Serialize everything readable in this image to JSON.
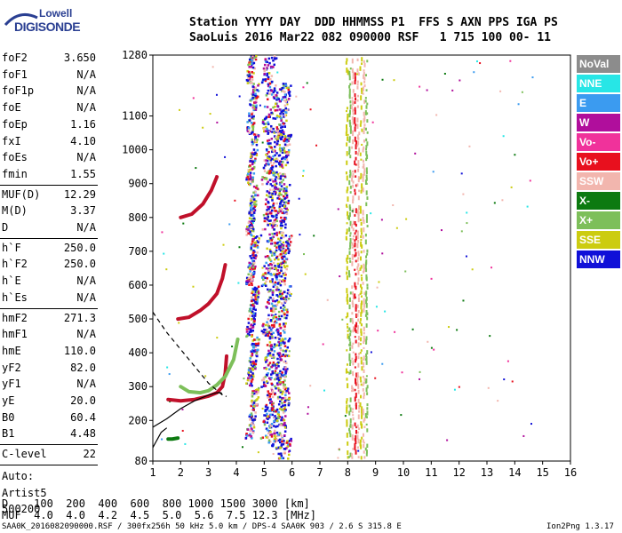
{
  "logo": {
    "top": "Lowell",
    "bottom": "DIGISONDE"
  },
  "header": {
    "line1": "Station YYYY DAY  DDD HHMMSS P1  FFS S AXN PPS IGA PS",
    "line2": "SaoLuis 2016 Mar22 082 090000 RSF   1 715 100 00- 11"
  },
  "params_group1": [
    {
      "label": "foF2",
      "value": "3.650"
    },
    {
      "label": "foF1",
      "value": "N/A"
    },
    {
      "label": "foF1p",
      "value": "N/A"
    },
    {
      "label": "foE",
      "value": "N/A"
    },
    {
      "label": "foEp",
      "value": "1.16"
    },
    {
      "label": "fxI",
      "value": "4.10"
    },
    {
      "label": "foEs",
      "value": "N/A"
    },
    {
      "label": "fmin",
      "value": "1.55"
    }
  ],
  "params_group2": [
    {
      "label": "MUF(D)",
      "value": "12.29"
    },
    {
      "label": "M(D)",
      "value": "3.37"
    },
    {
      "label": "D",
      "value": "N/A"
    }
  ],
  "params_group3": [
    {
      "label": "h`F",
      "value": "250.0"
    },
    {
      "label": "h`F2",
      "value": "250.0"
    },
    {
      "label": "h`E",
      "value": "N/A"
    },
    {
      "label": "h`Es",
      "value": "N/A"
    }
  ],
  "params_group4": [
    {
      "label": "hmF2",
      "value": "271.3"
    },
    {
      "label": "hmF1",
      "value": "N/A"
    },
    {
      "label": "hmE",
      "value": "110.0"
    },
    {
      "label": "yF2",
      "value": "82.0"
    },
    {
      "label": "yF1",
      "value": "N/A"
    },
    {
      "label": "yE",
      "value": "20.0"
    },
    {
      "label": "B0",
      "value": "60.4"
    },
    {
      "label": "B1",
      "value": "4.48"
    }
  ],
  "clevel": {
    "label": "C-level",
    "value": "22"
  },
  "auto": [
    "Auto:",
    "Artist5",
    "500200"
  ],
  "legend": [
    {
      "label": "NoVal",
      "color": "#8c8c8c"
    },
    {
      "label": "NNE",
      "color": "#27e6e6"
    },
    {
      "label": "E",
      "color": "#3b9bf0"
    },
    {
      "label": "W",
      "color": "#b00e9c"
    },
    {
      "label": "Vo-",
      "color": "#f0329b"
    },
    {
      "label": "Vo+",
      "color": "#e8101e"
    },
    {
      "label": "SSW",
      "color": "#f2b6ae"
    },
    {
      "label": "X-",
      "color": "#0c7a10"
    },
    {
      "label": "X+",
      "color": "#7dbf5a"
    },
    {
      "label": "SSE",
      "color": "#cccc10"
    },
    {
      "label": "NNW",
      "color": "#1010d8"
    }
  ],
  "chart_data": {
    "type": "scatter",
    "title": "",
    "xlabel": "",
    "ylabel": "",
    "xlim": [
      1,
      16
    ],
    "ylim": [
      80,
      1280
    ],
    "x_ticks": [
      "1",
      "2",
      "3",
      "4",
      "5",
      "6",
      "7",
      "8",
      "9",
      "10",
      "11",
      "12",
      "13",
      "14",
      "15",
      "16"
    ],
    "y_ticks": [
      "80",
      "200",
      "300",
      "400",
      "500",
      "600",
      "700",
      "800",
      "900",
      "1000",
      "1100",
      "1280"
    ],
    "traces": [
      {
        "name": "F2 ordinary trace",
        "color": "#c0102a",
        "points": [
          [
            1.55,
            262
          ],
          [
            2.0,
            258
          ],
          [
            2.5,
            262
          ],
          [
            3.0,
            272
          ],
          [
            3.3,
            282
          ],
          [
            3.5,
            300
          ],
          [
            3.6,
            340
          ],
          [
            3.65,
            390
          ]
        ]
      },
      {
        "name": "F2 extraordinary trace",
        "color": "#7dbf5a",
        "points": [
          [
            2.0,
            300
          ],
          [
            2.3,
            285
          ],
          [
            2.7,
            282
          ],
          [
            3.0,
            288
          ],
          [
            3.3,
            305
          ],
          [
            3.6,
            330
          ],
          [
            3.9,
            380
          ],
          [
            4.05,
            440
          ]
        ]
      },
      {
        "name": "second hop trace",
        "color": "#c0102a",
        "points": [
          [
            1.9,
            500
          ],
          [
            2.3,
            505
          ],
          [
            2.7,
            525
          ],
          [
            3.0,
            545
          ],
          [
            3.3,
            575
          ],
          [
            3.5,
            620
          ],
          [
            3.6,
            660
          ]
        ]
      },
      {
        "name": "third hop trace",
        "color": "#c0102a",
        "points": [
          [
            2.0,
            800
          ],
          [
            2.4,
            810
          ],
          [
            2.8,
            840
          ],
          [
            3.1,
            880
          ],
          [
            3.3,
            920
          ]
        ]
      },
      {
        "name": "E trace",
        "color": "#0c7a10",
        "points": [
          [
            1.55,
            145
          ],
          [
            1.7,
            145
          ],
          [
            1.9,
            148
          ]
        ]
      }
    ],
    "profile_solid": [
      [
        1.0,
        180
      ],
      [
        1.5,
        205
      ],
      [
        2.0,
        235
      ],
      [
        2.5,
        258
      ],
      [
        3.0,
        275
      ],
      [
        3.3,
        282
      ],
      [
        3.45,
        282
      ],
      [
        3.5,
        275
      ]
    ],
    "profile_dashed": [
      [
        1.0,
        520
      ],
      [
        1.5,
        460
      ],
      [
        2.0,
        410
      ],
      [
        2.5,
        360
      ],
      [
        3.0,
        310
      ],
      [
        3.5,
        275
      ],
      [
        3.65,
        271
      ]
    ],
    "profile_base": [
      [
        1.0,
        120
      ],
      [
        1.1,
        135
      ],
      [
        1.2,
        150
      ],
      [
        1.3,
        165
      ],
      [
        1.5,
        178
      ]
    ]
  },
  "bottom": {
    "d_row": "D    100  200  400  600  800 1000 1500 3000 [km]",
    "muf_row": "MUF  4.0  4.0  4.2  4.5  5.0  5.6  7.5 12.3 [MHz]"
  },
  "footer": {
    "left": "SAA0K_2016082090000.RSF / 300fx256h 50 kHz 5.0 km / DPS-4 SAA0K 903 / 2.6 S 315.8 E",
    "right": "Ion2Png 1.3.17"
  }
}
